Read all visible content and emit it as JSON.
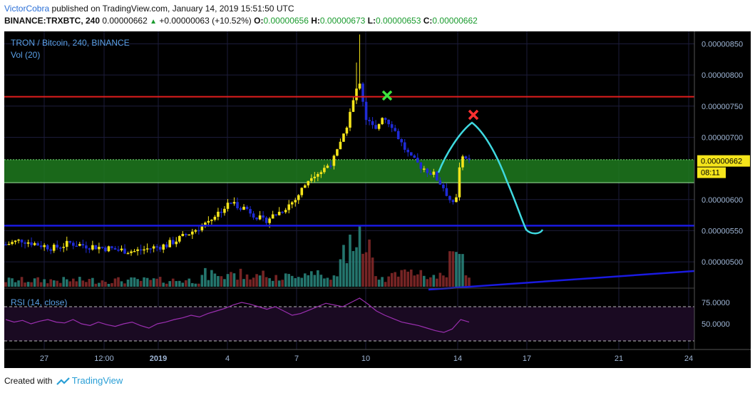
{
  "header": {
    "author": "VictorCobra",
    "published_text": "published on TradingView.com, January 14, 2019 15:51:50 UTC",
    "symbol": "BINANCE:TRXBTC, 240",
    "last": "0.00000662",
    "change": "+0.00000063 (+10.52%)",
    "o_label": "O:",
    "o": "0.00000656",
    "h_label": "H:",
    "h": "0.00000673",
    "l_label": "L:",
    "l": "0.00000653",
    "c_label": "C:",
    "c": "0.00000662"
  },
  "legend": {
    "title": "TRON / Bitcoin, 240, BINANCE",
    "vol": "Vol (20)",
    "rsi": "RSI (14, close)"
  },
  "price_tag": {
    "value": "0.00000662",
    "countdown": "08:11"
  },
  "footer": {
    "created": "Created with",
    "brand": "TradingView"
  },
  "colors": {
    "up": "#f5e51b",
    "down": "#1f2bd6",
    "bg": "#000000",
    "resistance": "#e01e1e",
    "support": "#1a1ae0",
    "zone": "#1e7a1e",
    "drawing": "#3fd9e0",
    "rsi": "#9b2fb0"
  },
  "chart_data": [
    {
      "type": "candlestick",
      "title": "TRON / Bitcoin, 240, BINANCE",
      "x_ticks": [
        "27",
        "12:00",
        "2019",
        "4",
        "7",
        "10",
        "14",
        "17",
        "21",
        "24"
      ],
      "y_ticks": [
        "0.00000850",
        "0.00000800",
        "0.00000750",
        "0.00000700",
        "0.00000662",
        "0.00000600",
        "0.00000550",
        "0.00000500"
      ],
      "ylim": [
        4.6e-06,
        8.7e-06
      ],
      "close_path": [
        {
          "t": 0,
          "c": 5.28e-06
        },
        {
          "t": 5,
          "c": 5.35e-06
        },
        {
          "t": 10,
          "c": 5.28e-06
        },
        {
          "t": 15,
          "c": 5.22e-06
        },
        {
          "t": 20,
          "c": 5.3e-06
        },
        {
          "t": 25,
          "c": 5.26e-06
        },
        {
          "t": 30,
          "c": 5.23e-06
        },
        {
          "t": 35,
          "c": 5.19e-06
        },
        {
          "t": 40,
          "c": 5.17e-06
        },
        {
          "t": 45,
          "c": 5.22e-06
        },
        {
          "t": 50,
          "c": 5.27e-06
        },
        {
          "t": 55,
          "c": 5.4e-06
        },
        {
          "t": 60,
          "c": 5.55e-06
        },
        {
          "t": 65,
          "c": 5.75e-06
        },
        {
          "t": 70,
          "c": 5.95e-06
        },
        {
          "t": 75,
          "c": 5.85e-06
        },
        {
          "t": 80,
          "c": 5.65e-06
        },
        {
          "t": 85,
          "c": 5.8e-06
        },
        {
          "t": 90,
          "c": 6e-06
        },
        {
          "t": 95,
          "c": 6.4e-06
        },
        {
          "t": 98,
          "c": 6.45e-06
        },
        {
          "t": 102,
          "c": 6.65e-06
        },
        {
          "t": 105,
          "c": 7e-06
        },
        {
          "t": 107,
          "c": 7.4e-06
        },
        {
          "t": 109,
          "c": 7.75e-06
        },
        {
          "t": 110,
          "c": 7.9e-06
        },
        {
          "t": 112,
          "c": 7.3e-06
        },
        {
          "t": 115,
          "c": 7.1e-06
        },
        {
          "t": 117,
          "c": 7.35e-06
        },
        {
          "t": 120,
          "c": 7.2e-06
        },
        {
          "t": 123,
          "c": 6.9e-06
        },
        {
          "t": 126,
          "c": 6.65e-06
        },
        {
          "t": 130,
          "c": 6.5e-06
        },
        {
          "t": 133,
          "c": 6.4e-06
        },
        {
          "t": 136,
          "c": 6.2e-06
        },
        {
          "t": 138,
          "c": 6e-06
        },
        {
          "t": 140,
          "c": 6e-06
        },
        {
          "t": 141,
          "c": 6.5e-06
        },
        {
          "t": 142,
          "c": 6.75e-06
        },
        {
          "t": 144,
          "c": 6.62e-06
        }
      ],
      "annotations": {
        "resistance_level": 7.65e-06,
        "support_level": 5.58e-06,
        "zone": [
          6.27e-06,
          6.64e-06
        ],
        "green_x": 7.67e-06,
        "red_x": 7.36e-06
      }
    },
    {
      "type": "line",
      "title": "RSI (14, close)",
      "y_ticks": [
        "75.0000",
        "50.0000"
      ],
      "ylim": [
        20,
        90
      ],
      "bands": [
        70,
        30
      ],
      "values": [
        55,
        52,
        54,
        50,
        53,
        55,
        52,
        51,
        55,
        50,
        48,
        52,
        49,
        47,
        50,
        52,
        48,
        45,
        50,
        52,
        55,
        57,
        60,
        58,
        62,
        65,
        68,
        72,
        75,
        73,
        70,
        67,
        70,
        65,
        60,
        62,
        66,
        70,
        74,
        72,
        70,
        75,
        80,
        73,
        65,
        60,
        56,
        52,
        50,
        48,
        45,
        42,
        40,
        44,
        55,
        52
      ]
    }
  ]
}
